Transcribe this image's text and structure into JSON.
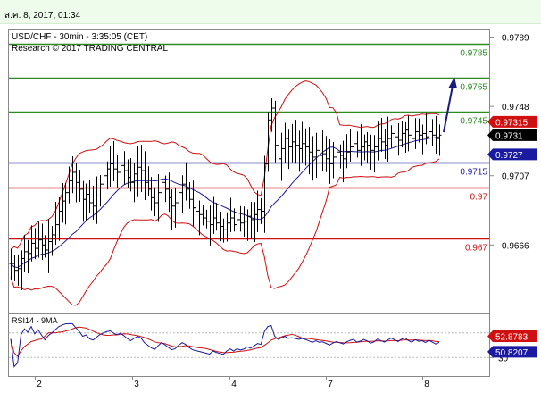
{
  "header": {
    "date_time": "ส.ค. 8, 2017, 01:34"
  },
  "chart": {
    "instrument_line": "USD/CHF - 30min - 3:35:05 (CET)",
    "research_line": "Research © 2017 TRADING CENTRAL"
  },
  "chart_data": [
    {
      "type": "candlestick",
      "title": "USD/CHF - 30min - 3:35:05 (CET)",
      "subtitle": "Research © 2017 TRADING CENTRAL",
      "x_tick_labels": [
        "2",
        "3",
        "4",
        "7",
        "8"
      ],
      "y_tick_labels": [
        "0.9789",
        "0.9748",
        "0.9707",
        "0.9666"
      ],
      "ylim": [
        0.9626,
        0.9793
      ],
      "grid": false,
      "levels": [
        {
          "label": "0.9785",
          "value": 0.9785,
          "color": "#2e8b22"
        },
        {
          "label": "0.9765",
          "value": 0.9765,
          "color": "#2e8b22"
        },
        {
          "label": "0.9745",
          "value": 0.9745,
          "color": "#2e8b22"
        },
        {
          "label": "0.9715",
          "value": 0.9715,
          "color": "#1a1aa0"
        },
        {
          "label": "0.97",
          "value": 0.97,
          "color": "#d01010"
        },
        {
          "label": "0.967",
          "value": 0.967,
          "color": "#d01010"
        }
      ],
      "price_tags": [
        {
          "label": "0.9731",
          "value": 0.9731,
          "color": "#000000"
        },
        {
          "label": "0.97315",
          "value": 0.97315,
          "color": "#d01010"
        },
        {
          "label": "0.9727",
          "value": 0.9727,
          "color": "#1a1aa0"
        }
      ],
      "close_series": [
        0.9655,
        0.9651,
        0.9652,
        0.9658,
        0.9662,
        0.9661,
        0.9667,
        0.9664,
        0.9669,
        0.9666,
        0.9663,
        0.9668,
        0.9672,
        0.9678,
        0.9686,
        0.9692,
        0.9697,
        0.9704,
        0.9709,
        0.9703,
        0.9699,
        0.9693,
        0.9696,
        0.9691,
        0.9689,
        0.9695,
        0.9702,
        0.9707,
        0.9711,
        0.9714,
        0.9711,
        0.9709,
        0.9713,
        0.971,
        0.9706,
        0.9703,
        0.9708,
        0.9712,
        0.971,
        0.9703,
        0.9699,
        0.9694,
        0.9691,
        0.9697,
        0.9703,
        0.9699,
        0.9694,
        0.9689,
        0.9691,
        0.9697,
        0.9702,
        0.9699,
        0.9693,
        0.9688,
        0.9686,
        0.9684,
        0.9682,
        0.968,
        0.9678,
        0.9682,
        0.9679,
        0.9677,
        0.9675,
        0.9679,
        0.9682,
        0.9678,
        0.9681,
        0.9679,
        0.968,
        0.9683,
        0.9681,
        0.9684,
        0.9687,
        0.9686,
        0.9714,
        0.974,
        0.9747,
        0.9725,
        0.9717,
        0.9723,
        0.9729,
        0.9724,
        0.9727,
        0.9725,
        0.9723,
        0.9726,
        0.9724,
        0.9721,
        0.9718,
        0.9722,
        0.9719,
        0.972,
        0.9717,
        0.9714,
        0.9718,
        0.9721,
        0.9719,
        0.9717,
        0.9721,
        0.9724,
        0.9726,
        0.9722,
        0.9724,
        0.9727,
        0.9725,
        0.9722,
        0.9724,
        0.9729,
        0.9727,
        0.9725,
        0.9729,
        0.9732,
        0.973,
        0.9728,
        0.9732,
        0.9734,
        0.9731,
        0.9729,
        0.9733,
        0.9731,
        0.9732,
        0.973,
        0.9733,
        0.9731,
        0.9729,
        0.9731
      ],
      "series": [
        {
          "name": "price",
          "values": "close_series"
        }
      ]
    },
    {
      "type": "line",
      "title": "RSI14 - 9MA",
      "ylim": [
        0,
        100
      ],
      "y_tick_labels": [
        "70",
        "30"
      ],
      "price_tags": [
        {
          "label": "52.8783",
          "value": 52.8783,
          "color": "#d01010"
        },
        {
          "label": "50.8207",
          "value": 50.8207,
          "color": "#1a1aa0"
        }
      ]
    }
  ]
}
